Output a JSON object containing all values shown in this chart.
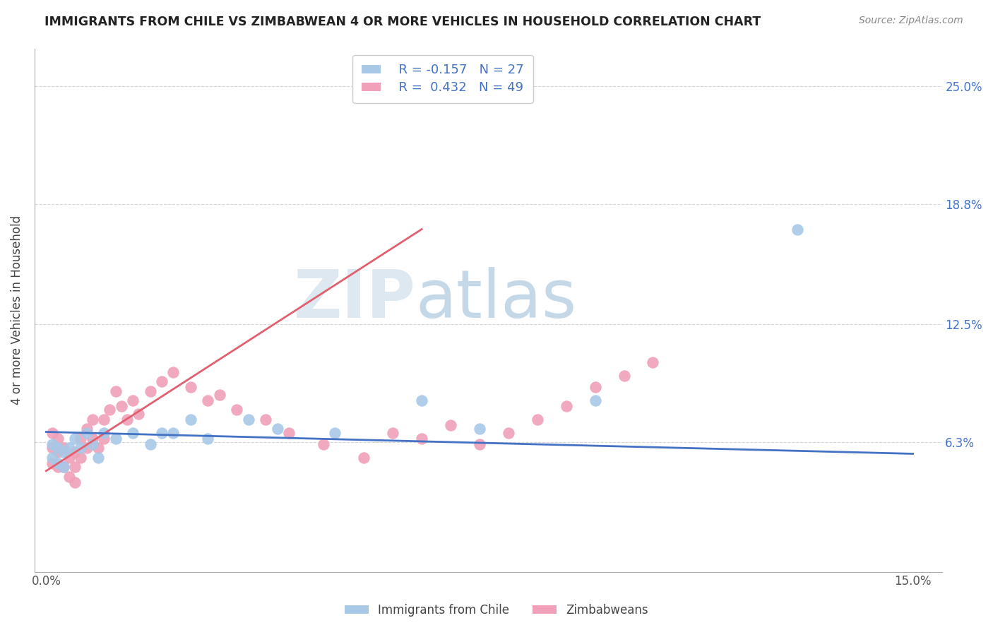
{
  "title": "IMMIGRANTS FROM CHILE VS ZIMBABWEAN 4 OR MORE VEHICLES IN HOUSEHOLD CORRELATION CHART",
  "source": "Source: ZipAtlas.com",
  "ylabel": "4 or more Vehicles in Household",
  "xlim": [
    0.0,
    0.15
  ],
  "ylim": [
    0.0,
    0.27
  ],
  "xtick_vals": [
    0.0,
    0.15
  ],
  "xtick_labels": [
    "0.0%",
    "15.0%"
  ],
  "ytick_vals": [
    0.063,
    0.125,
    0.188,
    0.25
  ],
  "ytick_labels": [
    "6.3%",
    "12.5%",
    "18.8%",
    "25.0%"
  ],
  "legend_r1": "R = -0.157",
  "legend_n1": "N = 27",
  "legend_r2": "R =  0.432",
  "legend_n2": "N = 49",
  "color_chile": "#a8c8e8",
  "color_zimbabwe": "#f0a0b8",
  "line_chile": "#4472c4",
  "line_zimbabwe": "#e06070",
  "blue_x": [
    0.001,
    0.001,
    0.002,
    0.002,
    0.003,
    0.003,
    0.004,
    0.005,
    0.006,
    0.007,
    0.008,
    0.009,
    0.01,
    0.012,
    0.015,
    0.018,
    0.02,
    0.022,
    0.025,
    0.028,
    0.035,
    0.04,
    0.05,
    0.065,
    0.075,
    0.095,
    0.13
  ],
  "blue_y": [
    0.062,
    0.055,
    0.06,
    0.052,
    0.058,
    0.05,
    0.06,
    0.065,
    0.06,
    0.068,
    0.062,
    0.055,
    0.068,
    0.065,
    0.068,
    0.062,
    0.068,
    0.068,
    0.075,
    0.065,
    0.075,
    0.07,
    0.068,
    0.085,
    0.07,
    0.085,
    0.175
  ],
  "pink_x": [
    0.001,
    0.001,
    0.001,
    0.002,
    0.002,
    0.002,
    0.003,
    0.003,
    0.004,
    0.004,
    0.005,
    0.005,
    0.005,
    0.006,
    0.006,
    0.007,
    0.007,
    0.008,
    0.008,
    0.009,
    0.01,
    0.01,
    0.011,
    0.012,
    0.013,
    0.014,
    0.015,
    0.016,
    0.018,
    0.02,
    0.022,
    0.025,
    0.028,
    0.03,
    0.033,
    0.038,
    0.042,
    0.048,
    0.055,
    0.06,
    0.065,
    0.07,
    0.075,
    0.08,
    0.085,
    0.09,
    0.095,
    0.1,
    0.105
  ],
  "pink_y": [
    0.068,
    0.06,
    0.052,
    0.065,
    0.058,
    0.05,
    0.06,
    0.05,
    0.055,
    0.045,
    0.058,
    0.05,
    0.042,
    0.065,
    0.055,
    0.07,
    0.06,
    0.075,
    0.065,
    0.06,
    0.075,
    0.065,
    0.08,
    0.09,
    0.082,
    0.075,
    0.085,
    0.078,
    0.09,
    0.095,
    0.1,
    0.092,
    0.085,
    0.088,
    0.08,
    0.075,
    0.068,
    0.062,
    0.055,
    0.068,
    0.065,
    0.072,
    0.062,
    0.068,
    0.075,
    0.082,
    0.092,
    0.098,
    0.105
  ],
  "pink_trendline_x0": 0.0,
  "pink_trendline_y0": 0.048,
  "pink_trendline_x1": 0.065,
  "pink_trendline_y1": 0.175,
  "blue_trendline_x0": 0.0,
  "blue_trendline_y0": 0.0685,
  "blue_trendline_x1": 0.15,
  "blue_trendline_y1": 0.057
}
